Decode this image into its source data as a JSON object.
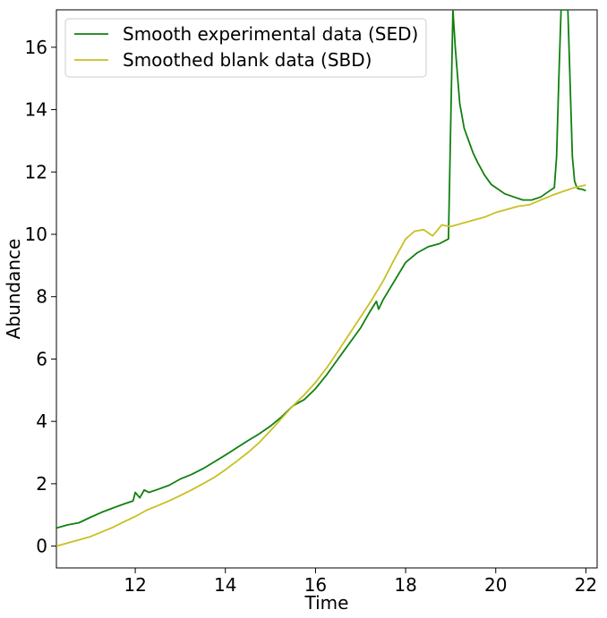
{
  "chart_data": {
    "type": "line",
    "xlabel": "Time",
    "ylabel": "Abundance",
    "xlim": [
      10.25,
      22.25
    ],
    "ylim": [
      -0.7,
      17.2
    ],
    "xticks": [
      12,
      14,
      16,
      18,
      20,
      22
    ],
    "yticks": [
      0,
      2,
      4,
      6,
      8,
      10,
      12,
      14,
      16
    ],
    "grid": false,
    "legend_position": "top-left",
    "series": [
      {
        "name": "Smooth experimental data (SED)",
        "color": "#108010",
        "x": [
          10.25,
          10.5,
          10.75,
          11.0,
          11.25,
          11.5,
          11.75,
          11.95,
          12.0,
          12.1,
          12.2,
          12.3,
          12.5,
          12.75,
          13.0,
          13.25,
          13.5,
          13.75,
          14.0,
          14.25,
          14.5,
          14.75,
          15.0,
          15.25,
          15.5,
          15.75,
          16.0,
          16.25,
          16.5,
          16.75,
          17.0,
          17.2,
          17.35,
          17.4,
          17.5,
          17.75,
          18.0,
          18.25,
          18.5,
          18.75,
          18.95,
          19.0,
          19.05,
          19.1,
          19.2,
          19.3,
          19.4,
          19.5,
          19.6,
          19.75,
          19.9,
          20.0,
          20.2,
          20.4,
          20.6,
          20.8,
          21.0,
          21.2,
          21.3,
          21.35,
          21.4,
          21.45,
          21.5,
          21.6,
          21.7,
          21.75,
          21.8,
          21.85,
          21.9,
          22.0
        ],
        "values": [
          0.58,
          0.68,
          0.75,
          0.92,
          1.08,
          1.22,
          1.35,
          1.45,
          1.72,
          1.55,
          1.8,
          1.72,
          1.82,
          1.95,
          2.15,
          2.3,
          2.48,
          2.7,
          2.92,
          3.15,
          3.38,
          3.6,
          3.85,
          4.15,
          4.5,
          4.7,
          5.05,
          5.5,
          6.0,
          6.5,
          7.0,
          7.5,
          7.85,
          7.6,
          7.9,
          8.5,
          9.1,
          9.4,
          9.6,
          9.7,
          9.85,
          13.5,
          17.2,
          16.0,
          14.2,
          13.4,
          13.0,
          12.6,
          12.3,
          11.9,
          11.6,
          11.5,
          11.3,
          11.2,
          11.1,
          11.1,
          11.2,
          11.4,
          11.5,
          12.5,
          15.0,
          17.2,
          17.2,
          17.2,
          12.5,
          11.7,
          11.5,
          11.45,
          11.45,
          11.4
        ]
      },
      {
        "name": "Smoothed blank data (SBD)",
        "color": "#c8c022",
        "x": [
          10.25,
          10.5,
          10.75,
          11.0,
          11.25,
          11.5,
          11.75,
          12.0,
          12.25,
          12.5,
          12.75,
          13.0,
          13.25,
          13.5,
          13.75,
          14.0,
          14.25,
          14.5,
          14.75,
          15.0,
          15.25,
          15.5,
          15.75,
          16.0,
          16.25,
          16.5,
          16.75,
          17.0,
          17.25,
          17.5,
          17.75,
          18.0,
          18.2,
          18.4,
          18.6,
          18.8,
          19.0,
          19.25,
          19.5,
          19.75,
          20.0,
          20.25,
          20.5,
          20.75,
          21.0,
          21.25,
          21.5,
          21.75,
          22.0
        ],
        "values": [
          0.0,
          0.1,
          0.2,
          0.3,
          0.45,
          0.6,
          0.78,
          0.95,
          1.15,
          1.3,
          1.45,
          1.62,
          1.8,
          2.0,
          2.2,
          2.45,
          2.72,
          3.0,
          3.32,
          3.7,
          4.1,
          4.5,
          4.85,
          5.25,
          5.72,
          6.25,
          6.8,
          7.35,
          7.9,
          8.5,
          9.2,
          9.85,
          10.1,
          10.15,
          9.95,
          10.3,
          10.25,
          10.35,
          10.45,
          10.55,
          10.7,
          10.8,
          10.9,
          10.95,
          11.1,
          11.25,
          11.38,
          11.5,
          11.58
        ]
      }
    ]
  }
}
